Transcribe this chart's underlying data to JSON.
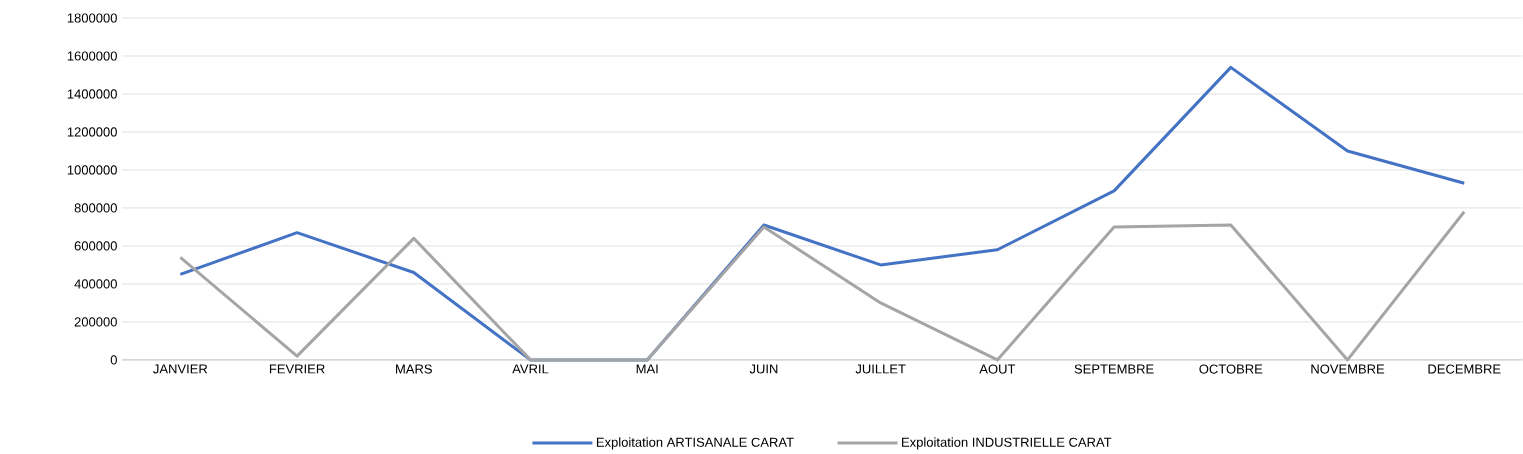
{
  "chart_data": {
    "type": "line",
    "categories": [
      "JANVIER",
      "FEVRIER",
      "MARS",
      "AVRIL",
      "MAI",
      "JUIN",
      "JUILLET",
      "AOUT",
      "SEPTEMBRE",
      "OCTOBRE",
      "NOVEMBRE",
      "DECEMBRE"
    ],
    "series": [
      {
        "name": "Exploitation  ARTISANALE CARAT",
        "color": "#4472c4",
        "values": [
          450000,
          670000,
          460000,
          0,
          0,
          710000,
          500000,
          580000,
          890000,
          1540000,
          1100000,
          930000
        ]
      },
      {
        "name": "Exploitation  INDUSTRIELLE CARAT",
        "color": "#a5a5a5",
        "values": [
          540000,
          20000,
          640000,
          0,
          0,
          700000,
          300000,
          0,
          700000,
          710000,
          0,
          780000
        ]
      }
    ],
    "ylim": [
      0,
      1800000
    ],
    "yticks": [
      0,
      200000,
      400000,
      600000,
      800000,
      1000000,
      1200000,
      1400000,
      1600000,
      1800000
    ],
    "grid": "y",
    "legend": "bottom",
    "marker": "none",
    "line_style": "solid"
  }
}
